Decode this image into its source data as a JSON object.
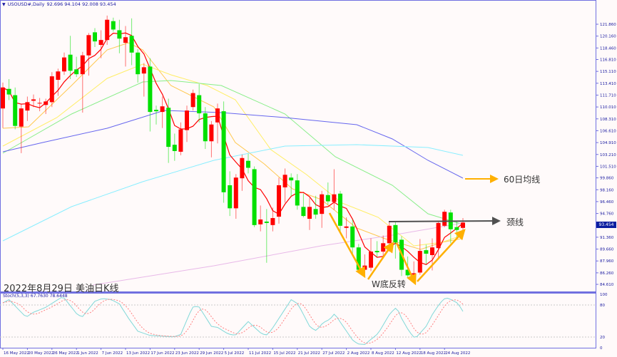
{
  "header": {
    "menu_icon": "triangle-down-icon",
    "symbol": "USOUSD#,Daily",
    "ohlc": "92.696 94.104 92.008 93.454"
  },
  "annotation": {
    "title": "2022年8月29日 美油日K线",
    "ma60_label": "60日均线",
    "neckline_label": "颈线",
    "pattern_label": "W底反转"
  },
  "colors": {
    "up": "#ff0000",
    "down": "#00e000",
    "axis": "#7070e0",
    "ma5": "#ff0000",
    "ma10": "#ffc850",
    "ma20": "#ffee66",
    "ma30": "#88ee88",
    "ma60": "#6666ee",
    "ma100": "#88eeff",
    "ma200": "#e8b8e8",
    "arrow": "#ffb000",
    "neckline": "#505050",
    "stoch_k": "#80d8d8",
    "stoch_d": "#ff8080"
  },
  "stoch": {
    "label": "Stoch(5,3,3)",
    "k_value": "67.7630",
    "d_value": "78.6448",
    "levels": [
      "100",
      "80",
      "20",
      "0"
    ]
  },
  "current_price": "93.454",
  "chart_data": {
    "type": "candlestick",
    "xlabel": "",
    "ylabel": "",
    "ylim": [
      84.61,
      121.86
    ],
    "y_ticks": [
      "121.860",
      "120.160",
      "118.460",
      "116.810",
      "115.110",
      "113.410",
      "111.710",
      "110.010",
      "108.310",
      "106.610",
      "104.910",
      "103.210",
      "101.510",
      "99.860",
      "98.160",
      "96.460",
      "94.760",
      "91.360",
      "89.660",
      "87.960",
      "86.260",
      "84.610"
    ],
    "x_ticks": [
      {
        "index": 0,
        "label": "16 May 2022"
      },
      {
        "index": 4,
        "label": "20 May 2022"
      },
      {
        "index": 8,
        "label": "26 May 2022"
      },
      {
        "index": 12,
        "label": "1 Jun 2022"
      },
      {
        "index": 16,
        "label": "7 Jun 2022"
      },
      {
        "index": 20,
        "label": "13 Jun 2022"
      },
      {
        "index": 24,
        "label": "17 Jun 2022"
      },
      {
        "index": 28,
        "label": "23 Jun 2022"
      },
      {
        "index": 32,
        "label": "29 Jun 2022"
      },
      {
        "index": 36,
        "label": "5 Jul 2022"
      },
      {
        "index": 40,
        "label": "11 Jul 2022"
      },
      {
        "index": 44,
        "label": "15 Jul 2022"
      },
      {
        "index": 48,
        "label": "21 Jul 2022"
      },
      {
        "index": 52,
        "label": "27 Jul 2022"
      },
      {
        "index": 56,
        "label": "2 Aug 2022"
      },
      {
        "index": 60,
        "label": "8 Aug 2022"
      },
      {
        "index": 64,
        "label": "12 Aug 2022"
      },
      {
        "index": 68,
        "label": "18 Aug 2022"
      },
      {
        "index": 72,
        "label": "24 Aug 2022"
      }
    ],
    "candles_ohlc": [
      [
        109.8,
        113.5,
        107.0,
        112.8
      ],
      [
        112.6,
        114.0,
        111.0,
        111.8
      ],
      [
        111.7,
        112.8,
        106.8,
        107.3
      ],
      [
        107.2,
        110.4,
        103.4,
        109.8
      ],
      [
        109.5,
        111.5,
        108.0,
        110.7
      ],
      [
        110.9,
        111.8,
        110.0,
        111.1
      ],
      [
        110.6,
        111.3,
        109.4,
        110.6
      ],
      [
        110.3,
        111.2,
        109.0,
        110.8
      ],
      [
        110.7,
        115.0,
        110.0,
        114.4
      ],
      [
        113.9,
        115.5,
        111.6,
        115.1
      ],
      [
        115.1,
        117.8,
        114.6,
        117.1
      ],
      [
        117.5,
        120.2,
        114.0,
        115.2
      ],
      [
        115.4,
        117.2,
        114.3,
        114.7
      ],
      [
        114.7,
        117.9,
        109.2,
        117.4
      ],
      [
        117.4,
        120.6,
        114.5,
        120.3
      ],
      [
        120.7,
        121.3,
        118.6,
        119.4
      ],
      [
        118.9,
        121.0,
        117.0,
        119.6
      ],
      [
        119.6,
        123.1,
        118.9,
        122.5
      ],
      [
        122.3,
        122.8,
        120.8,
        121.1
      ],
      [
        121.0,
        122.5,
        117.7,
        119.8
      ],
      [
        119.2,
        121.6,
        115.8,
        120.0
      ],
      [
        120.2,
        122.7,
        116.0,
        117.8
      ],
      [
        117.8,
        118.3,
        113.5,
        114.7
      ],
      [
        114.8,
        116.3,
        111.5,
        115.7
      ],
      [
        115.8,
        117.0,
        106.5,
        109.3
      ],
      [
        109.6,
        110.2,
        107.5,
        109.4
      ],
      [
        109.3,
        111.5,
        107.0,
        110.1
      ],
      [
        109.9,
        111.2,
        102.0,
        104.3
      ],
      [
        104.6,
        106.2,
        102.3,
        103.7
      ],
      [
        103.6,
        107.8,
        103.1,
        106.8
      ],
      [
        106.7,
        110.2,
        105.0,
        109.5
      ],
      [
        110.0,
        112.5,
        109.5,
        112.0
      ],
      [
        111.7,
        113.3,
        107.8,
        109.1
      ],
      [
        109.1,
        110.0,
        104.0,
        105.1
      ],
      [
        105.1,
        108.0,
        102.8,
        107.5
      ],
      [
        107.8,
        110.5,
        104.8,
        109.8
      ],
      [
        109.4,
        110.8,
        96.3,
        97.8
      ],
      [
        98.8,
        100.8,
        94.4,
        95.5
      ],
      [
        95.5,
        100.4,
        94.0,
        99.9
      ],
      [
        99.8,
        103.2,
        98.0,
        102.7
      ],
      [
        102.3,
        103.3,
        100.5,
        101.3
      ],
      [
        101.1,
        101.5,
        92.8,
        93.1
      ],
      [
        93.2,
        95.9,
        92.2,
        93.9
      ],
      [
        93.6,
        95.4,
        87.7,
        93.4
      ],
      [
        93.1,
        95.6,
        92.2,
        94.1
      ],
      [
        94.3,
        99.9,
        93.3,
        98.8
      ],
      [
        98.5,
        101.2,
        96.3,
        100.3
      ],
      [
        99.9,
        100.5,
        97.2,
        99.5
      ],
      [
        99.5,
        100.4,
        95.3,
        95.9
      ],
      [
        95.7,
        97.6,
        94.2,
        94.4
      ],
      [
        94.0,
        97.0,
        92.4,
        95.7
      ],
      [
        95.4,
        97.3,
        94.0,
        94.6
      ],
      [
        94.7,
        98.0,
        92.7,
        97.5
      ],
      [
        97.4,
        99.2,
        96.0,
        96.5
      ],
      [
        96.4,
        101.1,
        95.3,
        97.5
      ],
      [
        97.6,
        98.0,
        92.2,
        93.0
      ],
      [
        92.7,
        94.2,
        91.2,
        92.9
      ],
      [
        92.9,
        93.9,
        89.0,
        89.9
      ],
      [
        89.9,
        90.4,
        86.4,
        86.7
      ],
      [
        86.7,
        88.9,
        86.2,
        87.3
      ],
      [
        87.0,
        91.2,
        86.5,
        89.3
      ],
      [
        89.4,
        90.8,
        88.5,
        89.2
      ],
      [
        89.3,
        91.6,
        88.3,
        90.5
      ],
      [
        90.5,
        93.6,
        89.3,
        93.0
      ],
      [
        93.1,
        93.5,
        88.3,
        90.6
      ],
      [
        91.0,
        91.5,
        85.8,
        86.7
      ],
      [
        86.7,
        88.6,
        85.5,
        85.9
      ],
      [
        86.0,
        87.9,
        85.6,
        86.2
      ],
      [
        86.3,
        91.1,
        86.0,
        89.4
      ],
      [
        89.5,
        90.3,
        87.5,
        89.0
      ],
      [
        88.8,
        91.2,
        86.6,
        89.9
      ],
      [
        89.8,
        93.7,
        88.2,
        93.4
      ],
      [
        93.0,
        95.3,
        92.8,
        95.0
      ],
      [
        94.9,
        95.3,
        90.5,
        92.5
      ],
      [
        92.8,
        93.6,
        91.2,
        92.4
      ],
      [
        92.696,
        94.104,
        92.008,
        93.454
      ]
    ],
    "moving_averages": [
      {
        "key": "ma10",
        "points": [
          [
            0,
            106.96
          ],
          [
            4.2,
            107.17
          ],
          [
            11.2,
            113.08
          ],
          [
            17,
            118.19
          ],
          [
            20.5,
            119.21
          ],
          [
            22.8,
            118.19
          ],
          [
            27.4,
            113.08
          ],
          [
            34.4,
            110.02
          ],
          [
            37.9,
            104.92
          ],
          [
            42.6,
            101.86
          ],
          [
            47.2,
            98.29
          ],
          [
            51.9,
            96.76
          ],
          [
            57.7,
            92.68
          ],
          [
            62.3,
            91.15
          ],
          [
            68.1,
            89.62
          ],
          [
            71.6,
            90.64
          ],
          [
            75,
            91.2
          ]
        ]
      },
      {
        "key": "ma20",
        "points": [
          [
            0,
            104.41
          ],
          [
            8.8,
            108.49
          ],
          [
            17,
            114.1
          ],
          [
            22.8,
            116.15
          ],
          [
            27.4,
            114.62
          ],
          [
            33.3,
            113.08
          ],
          [
            37.9,
            111.04
          ],
          [
            43.7,
            103.9
          ],
          [
            49.5,
            100.33
          ],
          [
            55.3,
            96.25
          ],
          [
            61.2,
            94.21
          ],
          [
            67,
            90.13
          ],
          [
            71.6,
            90.64
          ],
          [
            75,
            91.66
          ]
        ]
      },
      {
        "key": "ma30",
        "points": [
          [
            0,
            103.39
          ],
          [
            11.2,
            109.0
          ],
          [
            22.8,
            113.59
          ],
          [
            27.4,
            113.8
          ],
          [
            35.6,
            113.08
          ],
          [
            46,
            109.0
          ],
          [
            54.2,
            102.88
          ],
          [
            63.5,
            98.8
          ],
          [
            69.3,
            94.72
          ],
          [
            75,
            93.19
          ]
        ]
      },
      {
        "key": "ma60",
        "points": [
          [
            0,
            103.59
          ],
          [
            6.5,
            104.92
          ],
          [
            17,
            106.96
          ],
          [
            26.3,
            109.51
          ],
          [
            35.6,
            109.21
          ],
          [
            46,
            108.49
          ],
          [
            57.7,
            107.47
          ],
          [
            63.5,
            105.43
          ],
          [
            69.3,
            102.37
          ],
          [
            75,
            99.82
          ]
        ]
      },
      {
        "key": "ma100",
        "points": [
          [
            0,
            90.84
          ],
          [
            11.2,
            95.74
          ],
          [
            22.8,
            99.31
          ],
          [
            34.4,
            102.37
          ],
          [
            46,
            104.41
          ],
          [
            57.7,
            104.62
          ],
          [
            69.3,
            104.21
          ],
          [
            75,
            103.08
          ]
        ]
      },
      {
        "key": "ma200",
        "points": [
          [
            14.7,
            84.51
          ],
          [
            34.4,
            87.27
          ],
          [
            51.9,
            90.13
          ],
          [
            63.5,
            91.66
          ],
          [
            75,
            93.39
          ]
        ]
      }
    ],
    "stoch_k_points": [
      [
        0,
        84
      ],
      [
        1,
        90
      ],
      [
        3.8,
        57
      ],
      [
        4.9,
        66
      ],
      [
        6.9,
        75
      ],
      [
        9.8,
        96
      ],
      [
        12,
        64
      ],
      [
        12.9,
        57
      ],
      [
        15,
        87
      ],
      [
        16.2,
        92
      ],
      [
        17.7,
        90
      ],
      [
        19,
        82
      ],
      [
        20.5,
        55
      ],
      [
        22,
        31
      ],
      [
        24,
        23
      ],
      [
        27,
        21
      ],
      [
        27.8,
        20
      ],
      [
        29,
        25
      ],
      [
        30.9,
        76
      ],
      [
        31.9,
        78
      ],
      [
        34,
        40
      ],
      [
        35,
        38
      ],
      [
        36.7,
        26
      ],
      [
        37.9,
        23
      ],
      [
        40,
        49
      ],
      [
        42,
        28
      ],
      [
        42.9,
        23
      ],
      [
        43.7,
        32
      ],
      [
        47,
        90
      ],
      [
        48.1,
        82
      ],
      [
        50.1,
        38
      ],
      [
        51.1,
        32
      ],
      [
        52.2,
        47
      ],
      [
        53.3,
        53
      ],
      [
        54.1,
        64
      ],
      [
        55,
        48
      ],
      [
        57.1,
        13
      ],
      [
        58,
        7
      ],
      [
        59,
        6
      ],
      [
        61.2,
        27
      ],
      [
        63.1,
        64
      ],
      [
        64.2,
        76
      ],
      [
        65,
        55
      ],
      [
        66.2,
        31
      ],
      [
        67.2,
        17
      ],
      [
        69,
        40
      ],
      [
        70.1,
        64
      ],
      [
        71.3,
        84
      ],
      [
        72.2,
        94
      ],
      [
        73.1,
        90
      ],
      [
        74.2,
        83
      ],
      [
        75,
        68
      ]
    ]
  }
}
